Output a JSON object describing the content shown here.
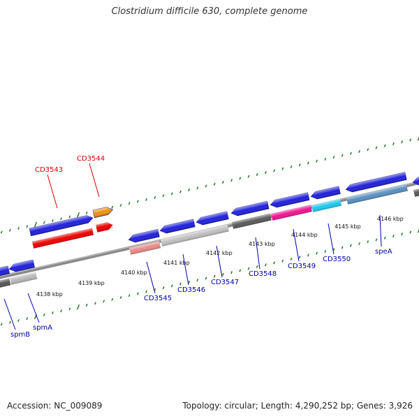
{
  "title": "Clostridium difficile 630, complete genome",
  "footer": {
    "accession": "Accession: NC_009089",
    "summary": "Topology: circular; Length: 4,290,252 bp; Genes: 3,926"
  },
  "colors": {
    "backbone": "#8a8a8a",
    "tick": "#2e7d32",
    "highlight_label": "#d40000",
    "normal_label": "#0000aa"
  },
  "ticks": [
    {
      "label": "4138 kbp"
    },
    {
      "label": "4139 kbp"
    },
    {
      "label": "4140 kbp"
    },
    {
      "label": "4141 kbp"
    },
    {
      "label": "4142 kbp"
    },
    {
      "label": "4143 kbp"
    },
    {
      "label": "4144 kbp"
    },
    {
      "label": "4145 kbp"
    },
    {
      "label": "4146 kbp"
    }
  ],
  "gene_labels": [
    {
      "name": "CD3543",
      "color": "#d40000"
    },
    {
      "name": "CD3544",
      "color": "#d40000"
    },
    {
      "name": "spmB",
      "color": "#0000aa"
    },
    {
      "name": "spmA",
      "color": "#0000aa"
    },
    {
      "name": "CD3545",
      "color": "#0000aa"
    },
    {
      "name": "CD3546",
      "color": "#0000aa"
    },
    {
      "name": "CD3547",
      "color": "#0000aa"
    },
    {
      "name": "CD3548",
      "color": "#0000aa"
    },
    {
      "name": "CD3549",
      "color": "#0000aa"
    },
    {
      "name": "CD3550",
      "color": "#0000aa"
    },
    {
      "name": "speA",
      "color": "#0000aa"
    }
  ],
  "genes": [
    {
      "id": "spmB",
      "color": "#1f1fdd"
    },
    {
      "id": "spmA",
      "color": "#1f1fdd"
    },
    {
      "id": "CD3543",
      "color": "#1f1fdd"
    },
    {
      "id": "CD3544",
      "color": "#f0900e"
    },
    {
      "id": "CD3545",
      "color": "#1f1fdd"
    },
    {
      "id": "CD3546",
      "color": "#1f1fdd"
    },
    {
      "id": "CD3547",
      "color": "#1f1fdd"
    },
    {
      "id": "CD3548",
      "color": "#1f1fdd"
    },
    {
      "id": "CD3549",
      "color": "#1f1fdd"
    },
    {
      "id": "CD3550",
      "color": "#1f1fdd"
    },
    {
      "id": "speA",
      "color": "#1f1fdd"
    },
    {
      "id": "next-gene",
      "color": "#1f1fdd"
    }
  ],
  "cog_bands": [
    {
      "id": "spmB-cog",
      "color": "#555555"
    },
    {
      "id": "spmA-cog",
      "color": "#b8b8b8"
    },
    {
      "id": "CD3543-cog",
      "color": "#ee0000"
    },
    {
      "id": "CD3544-cog",
      "color": "#ee0000"
    },
    {
      "id": "CD3545-cog",
      "color": "#e88a8a"
    },
    {
      "id": "CD3546-cog",
      "color": "#c0c0c0"
    },
    {
      "id": "CD3547-cog",
      "color": "#c0c0c0"
    },
    {
      "id": "CD3548-cog",
      "color": "#5a5a5a"
    },
    {
      "id": "CD3549-cog",
      "color": "#ee1493"
    },
    {
      "id": "CD3550-cog",
      "color": "#1ec8f0"
    },
    {
      "id": "speA-cog",
      "color": "#5a8fc0"
    },
    {
      "id": "next-gene-cog",
      "color": "#555555"
    }
  ]
}
